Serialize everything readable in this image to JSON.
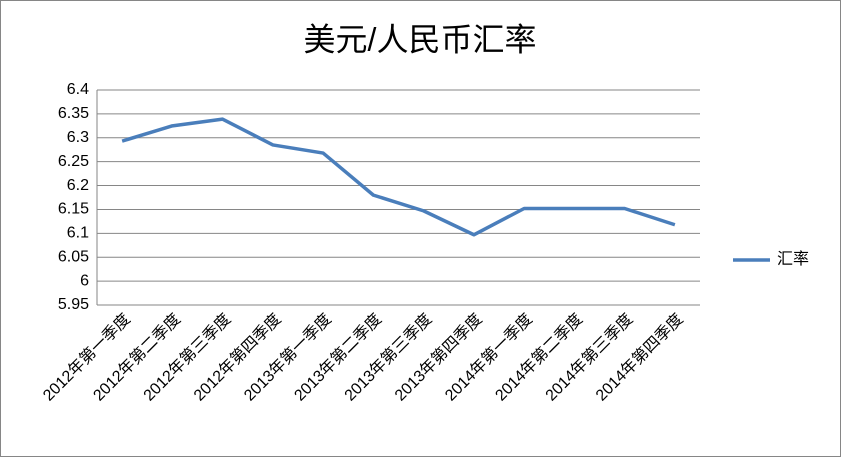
{
  "chart_data": {
    "type": "line",
    "title": "美元/人民币汇率",
    "categories": [
      "2012年第一季度",
      "2012年第二季度",
      "2012年第三季度",
      "2012年第四季度",
      "2013年第一季度",
      "2013年第二季度",
      "2013年第三季度",
      "2013年第四季度",
      "2014年第一季度",
      "2014年第二季度",
      "2014年第三季度",
      "2014年第四季度"
    ],
    "series": [
      {
        "name": "汇率",
        "color": "#4a7ebb",
        "values": [
          6.293,
          6.325,
          6.339,
          6.285,
          6.268,
          6.18,
          6.147,
          6.097,
          6.152,
          6.152,
          6.152,
          6.118
        ]
      }
    ],
    "ylim": [
      5.95,
      6.4
    ],
    "yticks": [
      5.95,
      6,
      6.05,
      6.1,
      6.15,
      6.2,
      6.25,
      6.3,
      6.35,
      6.4
    ],
    "grid": true,
    "legend": "right"
  }
}
